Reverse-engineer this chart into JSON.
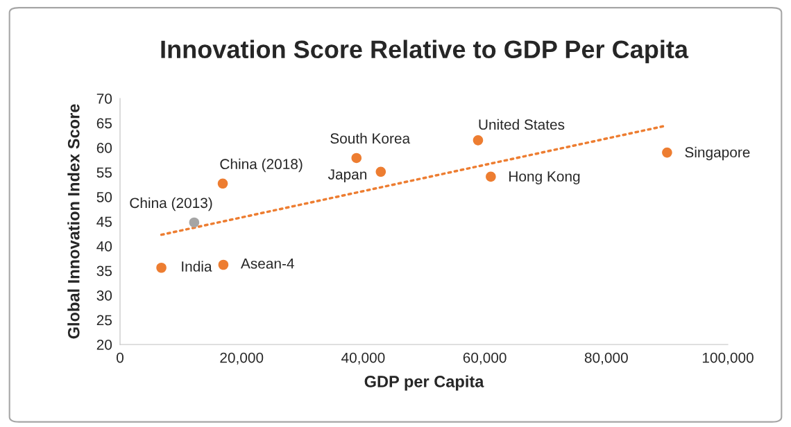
{
  "chart_data": {
    "type": "scatter",
    "title": "Innovation Score Relative to GDP Per Capita",
    "xlabel": "GDP per Capita",
    "ylabel": "Global Innovation Index Score",
    "xlim": [
      0,
      100000
    ],
    "ylim": [
      20,
      70
    ],
    "xticks": [
      0,
      {
        "value": 20000,
        "label": "20,000"
      },
      {
        "value": 40000,
        "label": "40,000"
      },
      {
        "value": 60000,
        "label": "60,000"
      },
      {
        "value": 80000,
        "label": "80,000"
      },
      {
        "value": 100000,
        "label": "100,000"
      }
    ],
    "yticks": [
      20,
      25,
      30,
      35,
      40,
      45,
      50,
      55,
      60,
      65,
      70
    ],
    "grid": false,
    "legend": false,
    "marker": "circle",
    "series": [
      {
        "x": [
          6800,
          12200,
          16900,
          17000,
          38900,
          42900,
          58900,
          61000,
          90000
        ],
        "values": [
          35.6,
          44.8,
          52.7,
          36.2,
          57.9,
          55.1,
          61.5,
          54.1,
          59.0
        ],
        "colors": [
          "#ed7d31",
          "#a5a5a5",
          "#ed7d31",
          "#ed7d31",
          "#ed7d31",
          "#ed7d31",
          "#ed7d31",
          "#ed7d31",
          "#ed7d31"
        ]
      },
      {
        "type": "line",
        "x": [
          6800,
          89600
        ],
        "values": [
          42.3,
          64.4
        ],
        "color": "#ed7d31",
        "line_style": "dotted",
        "marker": "none"
      }
    ],
    "annotations": [
      {
        "text": "India",
        "x": 6800,
        "y": 35.6
      },
      {
        "text": "China (2013)",
        "x": 12200,
        "y": 44.8
      },
      {
        "text": "China (2018)",
        "x": 16900,
        "y": 52.7
      },
      {
        "text": "Asean-4",
        "x": 17000,
        "y": 36.2
      },
      {
        "text": "South Korea",
        "x": 38900,
        "y": 57.9
      },
      {
        "text": "Japan",
        "x": 42900,
        "y": 55.1
      },
      {
        "text": "United States",
        "x": 58900,
        "y": 61.5
      },
      {
        "text": "Hong Kong",
        "x": 61000,
        "y": 54.1
      },
      {
        "text": "Singapore",
        "x": 90000,
        "y": 59.0
      }
    ]
  }
}
